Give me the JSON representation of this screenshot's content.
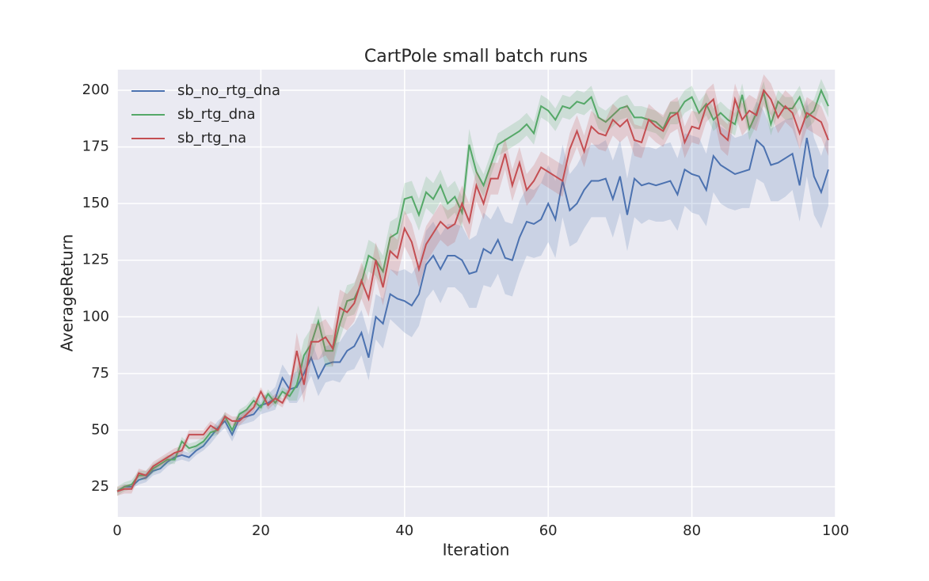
{
  "chart_data": {
    "type": "line",
    "title": "CartPole small batch runs",
    "xlabel": "Iteration",
    "ylabel": "AverageReturn",
    "xlim": [
      0,
      100
    ],
    "ylim": [
      11.7,
      209.1
    ],
    "xticks": [
      0,
      20,
      40,
      60,
      80,
      100
    ],
    "yticks": [
      25,
      50,
      75,
      100,
      125,
      150,
      175,
      200
    ],
    "grid": true,
    "legend": "upper left",
    "x": [
      0,
      1,
      2,
      3,
      4,
      5,
      6,
      7,
      8,
      9,
      10,
      11,
      12,
      13,
      14,
      15,
      16,
      17,
      18,
      19,
      20,
      21,
      22,
      23,
      24,
      25,
      26,
      27,
      28,
      29,
      30,
      31,
      32,
      33,
      34,
      35,
      36,
      37,
      38,
      39,
      40,
      41,
      42,
      43,
      44,
      45,
      46,
      47,
      48,
      49,
      50,
      51,
      52,
      53,
      54,
      55,
      56,
      57,
      58,
      59,
      60,
      61,
      62,
      63,
      64,
      65,
      66,
      67,
      68,
      69,
      70,
      71,
      72,
      73,
      74,
      75,
      76,
      77,
      78,
      79,
      80,
      81,
      82,
      83,
      84,
      85,
      86,
      87,
      88,
      89,
      90,
      91,
      92,
      93,
      94,
      95,
      96,
      97,
      98,
      99
    ],
    "series": [
      {
        "name": "sb_no_rtg_dna",
        "color": "#4c72b0",
        "values": [
          23,
          25,
          25,
          28,
          29,
          32,
          33,
          36,
          38,
          39,
          38,
          41,
          43,
          47,
          51,
          54,
          48,
          55,
          56,
          57,
          61,
          62,
          64,
          73,
          68,
          69,
          75,
          82,
          73,
          79,
          80,
          80,
          85,
          87,
          93,
          82,
          100,
          97,
          110,
          108,
          107,
          105,
          110,
          123,
          127,
          121,
          127,
          127,
          125,
          119,
          120,
          130,
          128,
          134,
          126,
          125,
          135,
          142,
          141,
          143,
          150,
          143,
          160,
          147,
          150,
          156,
          160,
          160,
          161,
          152,
          162,
          145,
          161,
          158,
          159,
          158,
          159,
          160,
          154,
          165,
          163,
          162,
          156,
          171,
          167,
          165,
          163,
          164,
          165,
          178,
          175,
          167,
          168,
          170,
          172,
          158,
          179,
          162,
          155,
          165
        ],
        "std": [
          1,
          1,
          1,
          2,
          2,
          2,
          2,
          2,
          2,
          2,
          2,
          2,
          2,
          3,
          3,
          3,
          3,
          3,
          3,
          3,
          4,
          4,
          5,
          6,
          6,
          7,
          8,
          8,
          8,
          8,
          8,
          9,
          9,
          10,
          10,
          10,
          10,
          11,
          11,
          12,
          14,
          14,
          14,
          15,
          15,
          15,
          14,
          14,
          15,
          15,
          16,
          16,
          15,
          15,
          16,
          16,
          16,
          15,
          15,
          16,
          17,
          17,
          16,
          16,
          17,
          17,
          16,
          16,
          17,
          17,
          16,
          16,
          17,
          17,
          16,
          16,
          17,
          17,
          16,
          16,
          17,
          17,
          16,
          16,
          17,
          17,
          16,
          16,
          17,
          17,
          16,
          16,
          17,
          17,
          16,
          16,
          17,
          17,
          16,
          16
        ]
      },
      {
        "name": "sb_rtg_dna",
        "color": "#55a868",
        "values": [
          23,
          25,
          26,
          30,
          30,
          33,
          35,
          37,
          37,
          45,
          42,
          43,
          45,
          49,
          50,
          56,
          50,
          57,
          59,
          63,
          60,
          66,
          62,
          67,
          65,
          70,
          83,
          88,
          98,
          85,
          85,
          97,
          107,
          108,
          115,
          127,
          125,
          120,
          135,
          137,
          152,
          153,
          145,
          155,
          152,
          158,
          150,
          153,
          146,
          176,
          164,
          158,
          167,
          176,
          178,
          180,
          182,
          185,
          181,
          193,
          191,
          187,
          193,
          192,
          195,
          194,
          197,
          188,
          186,
          189,
          192,
          193,
          188,
          188,
          187,
          186,
          183,
          190,
          190,
          195,
          197,
          190,
          194,
          187,
          190,
          187,
          185,
          198,
          183,
          190,
          199,
          185,
          195,
          192,
          192,
          197,
          188,
          191,
          200,
          193
        ],
        "std": [
          2,
          2,
          2,
          2,
          2,
          2,
          2,
          2,
          2,
          2,
          2,
          2,
          2,
          2,
          2,
          2,
          2,
          2,
          2,
          2,
          2,
          2,
          2,
          2,
          2,
          7,
          7,
          7,
          7,
          7,
          7,
          7,
          7,
          7,
          7,
          7,
          7,
          7,
          7,
          7,
          7,
          7,
          7,
          7,
          7,
          7,
          7,
          7,
          7,
          7,
          5,
          5,
          5,
          5,
          5,
          5,
          5,
          5,
          5,
          5,
          5,
          5,
          5,
          5,
          5,
          5,
          5,
          5,
          5,
          5,
          5,
          5,
          5,
          5,
          5,
          5,
          5,
          5,
          5,
          5,
          5,
          5,
          5,
          5,
          5,
          5,
          5,
          5,
          5,
          5,
          5,
          5,
          5,
          5,
          5,
          5,
          5,
          5,
          5,
          5
        ]
      },
      {
        "name": "sb_rtg_na",
        "color": "#c44e52",
        "values": [
          23,
          24,
          24,
          31,
          30,
          34,
          36,
          38,
          40,
          41,
          48,
          48,
          48,
          52,
          50,
          56,
          54,
          54,
          57,
          60,
          67,
          61,
          64,
          62,
          68,
          85,
          70,
          89,
          89,
          91,
          86,
          104,
          102,
          106,
          116,
          108,
          125,
          113,
          129,
          126,
          139,
          133,
          121,
          132,
          137,
          142,
          139,
          141,
          150,
          142,
          158,
          150,
          161,
          161,
          172,
          158,
          168,
          156,
          160,
          166,
          164,
          162,
          160,
          174,
          182,
          173,
          184,
          181,
          180,
          187,
          184,
          187,
          178,
          177,
          187,
          184,
          182,
          188,
          190,
          177,
          184,
          183,
          193,
          196,
          181,
          178,
          196,
          187,
          191,
          189,
          200,
          196,
          188,
          193,
          190,
          181,
          190,
          188,
          186,
          178
        ],
        "std": [
          2,
          2,
          2,
          2,
          2,
          2,
          2,
          2,
          2,
          2,
          2,
          2,
          2,
          2,
          2,
          2,
          2,
          2,
          2,
          2,
          2,
          2,
          2,
          2,
          2,
          8,
          8,
          8,
          8,
          8,
          8,
          8,
          8,
          8,
          8,
          8,
          8,
          8,
          8,
          8,
          8,
          8,
          8,
          8,
          8,
          8,
          8,
          8,
          8,
          8,
          7,
          7,
          7,
          7,
          7,
          7,
          7,
          7,
          7,
          7,
          7,
          7,
          7,
          7,
          7,
          7,
          7,
          7,
          7,
          7,
          7,
          7,
          7,
          7,
          7,
          7,
          7,
          7,
          7,
          7,
          7,
          7,
          7,
          7,
          7,
          7,
          7,
          7,
          7,
          7,
          7,
          7,
          7,
          7,
          7,
          7,
          7,
          7,
          7,
          7
        ]
      }
    ]
  }
}
